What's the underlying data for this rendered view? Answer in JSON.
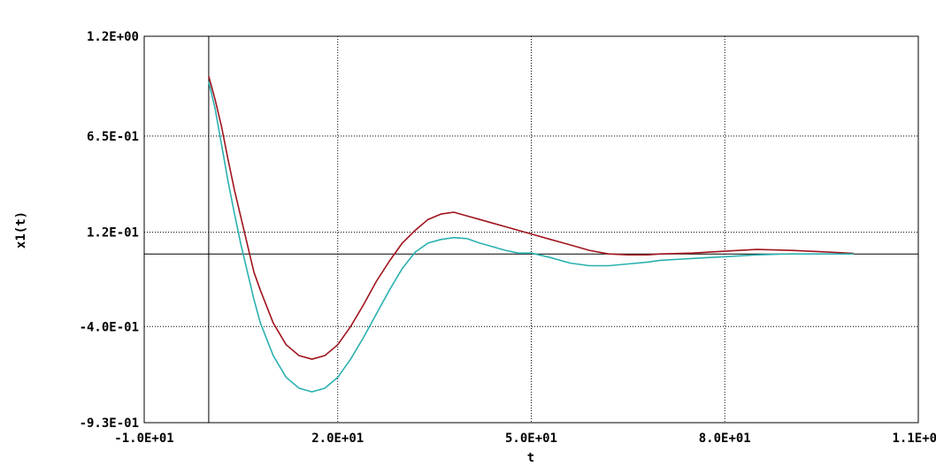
{
  "chart_data": {
    "type": "line",
    "title": "",
    "xlabel": "t",
    "ylabel": "x1(t)",
    "xlim": [
      -10,
      110
    ],
    "ylim": [
      -0.93,
      1.2
    ],
    "grid": true,
    "x_ticks": [
      {
        "value": -10,
        "label": "-1.0E+01"
      },
      {
        "value": 20,
        "label": "2.0E+01"
      },
      {
        "value": 50,
        "label": "5.0E+01"
      },
      {
        "value": 80,
        "label": "8.0E+01"
      },
      {
        "value": 110,
        "label": "1.1E+02"
      }
    ],
    "y_ticks": [
      {
        "value": 1.2,
        "label": "1.2E+00"
      },
      {
        "value": 0.65,
        "label": "6.5E-01"
      },
      {
        "value": 0.12,
        "label": "1.2E-01"
      },
      {
        "value": -0.4,
        "label": "-4.0E-01"
      },
      {
        "value": -0.93,
        "label": "-9.3E-01"
      }
    ],
    "reference_lines": {
      "x": 0,
      "y": 0
    },
    "series": [
      {
        "color": "#a0141e",
        "x": [
          0,
          1,
          2,
          3,
          4,
          5,
          6,
          7,
          8,
          10,
          12,
          14,
          16,
          18,
          20,
          22,
          24,
          26,
          28,
          30,
          32,
          34,
          36,
          38,
          40,
          42,
          44,
          46,
          48,
          50,
          53,
          56,
          59,
          62,
          65,
          68,
          70,
          75,
          80,
          85,
          90,
          95,
          100
        ],
        "values": [
          0.98,
          0.85,
          0.7,
          0.52,
          0.35,
          0.2,
          0.05,
          -0.1,
          -0.2,
          -0.38,
          -0.5,
          -0.56,
          -0.58,
          -0.56,
          -0.5,
          -0.4,
          -0.28,
          -0.15,
          -0.04,
          0.06,
          0.13,
          0.19,
          0.22,
          0.23,
          0.21,
          0.19,
          0.17,
          0.15,
          0.13,
          0.11,
          0.08,
          0.05,
          0.02,
          0.0,
          -0.005,
          -0.005,
          0.0,
          0.005,
          0.015,
          0.025,
          0.02,
          0.012,
          0.003
        ]
      },
      {
        "color": "#2ab0b0",
        "x": [
          0,
          1,
          2,
          3,
          4,
          5,
          6,
          7,
          8,
          10,
          12,
          14,
          16,
          18,
          20,
          22,
          24,
          26,
          28,
          30,
          32,
          34,
          36,
          38,
          40,
          42,
          44,
          46,
          48,
          50,
          53,
          56,
          59,
          62,
          65,
          68,
          70,
          75,
          80,
          85,
          90,
          95,
          100
        ],
        "values": [
          0.95,
          0.8,
          0.6,
          0.4,
          0.22,
          0.05,
          -0.1,
          -0.25,
          -0.38,
          -0.56,
          -0.68,
          -0.74,
          -0.76,
          -0.74,
          -0.68,
          -0.58,
          -0.46,
          -0.33,
          -0.2,
          -0.08,
          0.01,
          0.06,
          0.08,
          0.09,
          0.085,
          0.06,
          0.04,
          0.02,
          0.005,
          0.005,
          -0.02,
          -0.05,
          -0.065,
          -0.065,
          -0.055,
          -0.045,
          -0.035,
          -0.025,
          -0.015,
          -0.005,
          0.0,
          0.0,
          0.0
        ]
      }
    ]
  }
}
